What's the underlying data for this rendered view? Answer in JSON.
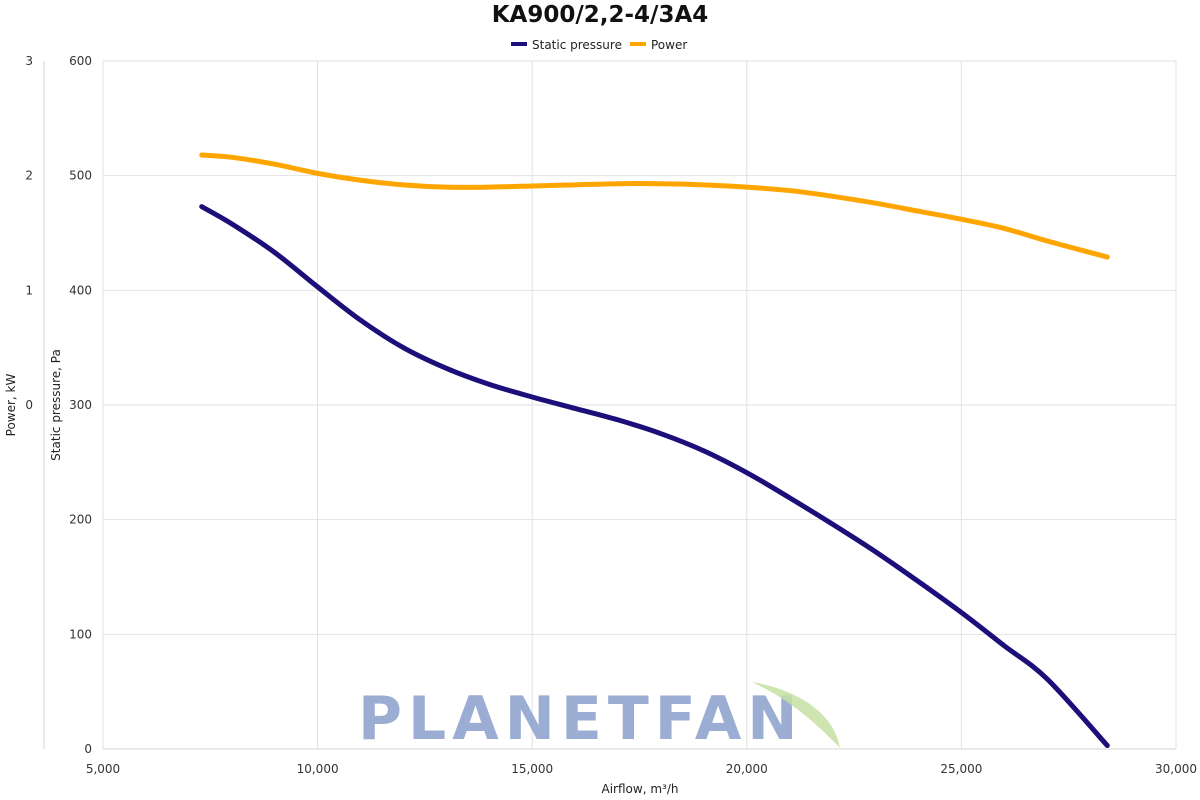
{
  "chart_data": {
    "type": "line",
    "title": "KA900/2,2-4/3A4",
    "xlabel": "Airflow, m³/h",
    "ylabel": "Static pressure, Pa",
    "y2label": "Power, kW",
    "xlim": [
      5000,
      30000
    ],
    "ylim": [
      0,
      600
    ],
    "y2lim": [
      -3,
      3
    ],
    "x_ticks": [
      "5,000",
      "10,000",
      "15,000",
      "20,000",
      "25,000",
      "30,000"
    ],
    "y_ticks": [
      "0",
      "100",
      "200",
      "300",
      "400",
      "500",
      "600"
    ],
    "y2_ticks": [
      "0",
      "1",
      "2",
      "3"
    ],
    "grid": true,
    "legend_position": "top-center",
    "series": [
      {
        "name": "Static pressure",
        "axis": "left",
        "color": "#1c0f7a",
        "x": [
          7300,
          8000,
          9000,
          10000,
          11000,
          12000,
          13000,
          14000,
          15000,
          16000,
          17000,
          18000,
          19000,
          20000,
          21000,
          22000,
          23000,
          24000,
          25000,
          26000,
          27000,
          28400
        ],
        "y": [
          473,
          458,
          433,
          403,
          374,
          350,
          332,
          318,
          307,
          297,
          287,
          275,
          260,
          241,
          219,
          196,
          172,
          146,
          119,
          90,
          61,
          3
        ]
      },
      {
        "name": "Power",
        "axis": "right",
        "color": "#ffa500",
        "x": [
          7300,
          8000,
          9000,
          10000,
          11000,
          12000,
          13000,
          14000,
          15000,
          16000,
          17000,
          18000,
          19000,
          20000,
          21000,
          22000,
          23000,
          24000,
          25000,
          26000,
          27000,
          28400
        ],
        "y": [
          2.18,
          2.16,
          2.1,
          2.02,
          1.96,
          1.92,
          1.9,
          1.9,
          1.91,
          1.92,
          1.93,
          1.93,
          1.92,
          1.9,
          1.87,
          1.82,
          1.76,
          1.69,
          1.62,
          1.54,
          1.43,
          1.29
        ]
      }
    ]
  },
  "watermark": {
    "text": "PLANETFAN",
    "color": "#8a9fcc",
    "leaf_color": "#c5e1a5"
  }
}
